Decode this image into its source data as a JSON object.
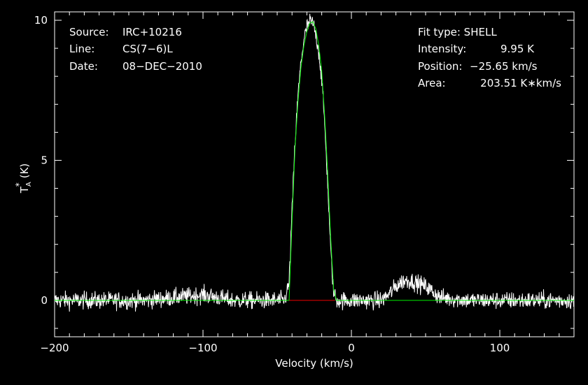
{
  "info_left": {
    "source_label": "Source:",
    "source_value": "IRC+10216",
    "line_label": "Line:",
    "line_value": "CS(7−6)L",
    "date_label": "Date:",
    "date_value": "08−DEC−2010"
  },
  "info_right": {
    "fit_type": "Fit type: SHELL",
    "intensity_label": "Intensity:",
    "intensity_value": "9.95 K",
    "position_label": "Position:",
    "position_value": "−25.65 km/s",
    "area_label": "Area:",
    "area_value": "203.51 K∗km/s"
  },
  "colors": {
    "background": "#000000",
    "spectrum": "#ffffff",
    "fit": "#00ee00",
    "baseline": "#ee0000",
    "axes": "#ffffff"
  },
  "chart_data": {
    "type": "line",
    "xlabel": "Velocity (km/s)",
    "ylabel_main": "T",
    "ylabel_sub": "A",
    "ylabel_sup": "*",
    "ylabel_unit": "(K)",
    "xlim": [
      -200,
      150
    ],
    "ylim": [
      -1.3,
      10.3
    ],
    "x_ticks": [
      -200,
      -100,
      0,
      100
    ],
    "x_tick_labels": [
      "−200",
      "−100",
      "0",
      "100"
    ],
    "y_ticks": [
      0,
      5,
      10
    ],
    "y_tick_labels": [
      "0",
      "5",
      "10"
    ],
    "series": [
      {
        "kind": "observed spectrum",
        "x": [
          -200,
          -180,
          -160,
          -140,
          -120,
          -100,
          -80,
          -60,
          -45,
          -42,
          -40,
          -38,
          -36,
          -34,
          -32,
          -30,
          -28,
          -26,
          -24,
          -22,
          -20,
          -18,
          -16,
          -14,
          -12,
          -10,
          0,
          20,
          25,
          30,
          35,
          40,
          45,
          50,
          55,
          60,
          80,
          100,
          120,
          150
        ],
        "y": [
          0,
          0,
          0,
          0,
          0.1,
          0.2,
          0,
          0,
          0,
          0.6,
          3.2,
          5.6,
          7.3,
          8.5,
          9.3,
          9.75,
          9.95,
          9.9,
          9.5,
          8.9,
          7.9,
          6.3,
          4.2,
          1.8,
          0.3,
          0,
          0,
          0,
          0.2,
          0.5,
          0.7,
          0.7,
          0.6,
          0.5,
          0.3,
          0.1,
          0,
          0,
          0,
          0
        ]
      },
      {
        "kind": "SHELL fit",
        "x": [
          -200,
          -42,
          -40,
          -38,
          -36,
          -34,
          -32,
          -30,
          -28,
          -26,
          -24,
          -22,
          -20,
          -18,
          -16,
          -14,
          -12,
          -10,
          150
        ],
        "y": [
          0,
          0,
          2.8,
          5.4,
          7.1,
          8.3,
          9.1,
          9.6,
          9.9,
          9.95,
          9.7,
          9.1,
          8.2,
          6.6,
          4.6,
          2.3,
          0.4,
          0,
          0
        ]
      }
    ],
    "baseline_segment": [
      -42,
      -11
    ]
  }
}
